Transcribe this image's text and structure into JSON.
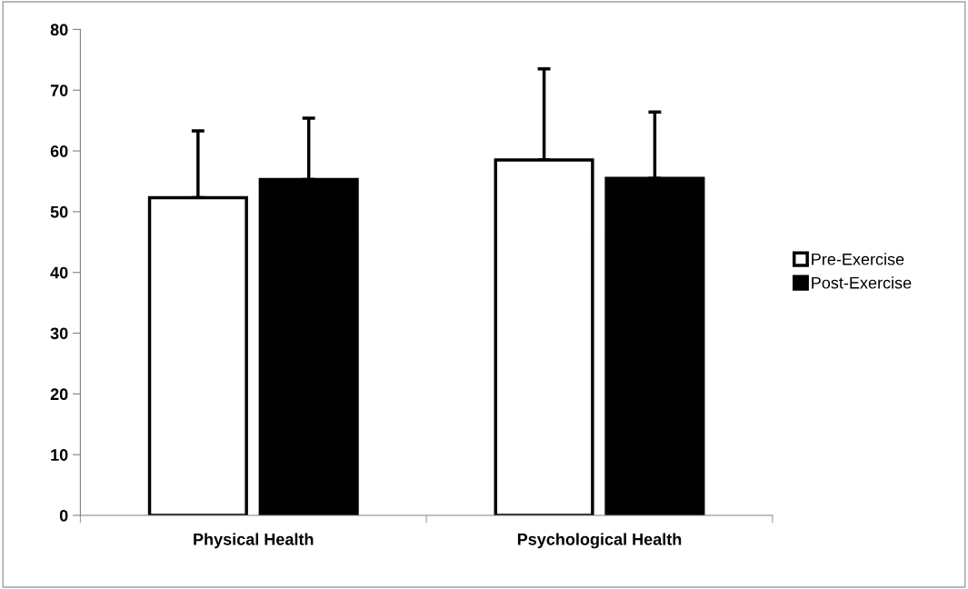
{
  "chart_data": {
    "type": "bar",
    "categories": [
      "Physical Health",
      "Psychological Health"
    ],
    "series": [
      {
        "name": "Pre-Exercise",
        "color": "#ffffff",
        "values": [
          52.3,
          58.5
        ],
        "errors": [
          [
            52.3,
            63.3
          ],
          [
            58.5,
            73.5
          ]
        ]
      },
      {
        "name": "Post-Exercise",
        "color": "#000000",
        "values": [
          55.3,
          55.5
        ],
        "errors": [
          [
            55.3,
            65.4
          ],
          [
            55.5,
            66.4
          ]
        ]
      }
    ],
    "ylim": [
      0,
      80
    ],
    "yticks": [
      0,
      10,
      20,
      30,
      40,
      50,
      60,
      70,
      80
    ],
    "grid": false,
    "legend": "right"
  }
}
